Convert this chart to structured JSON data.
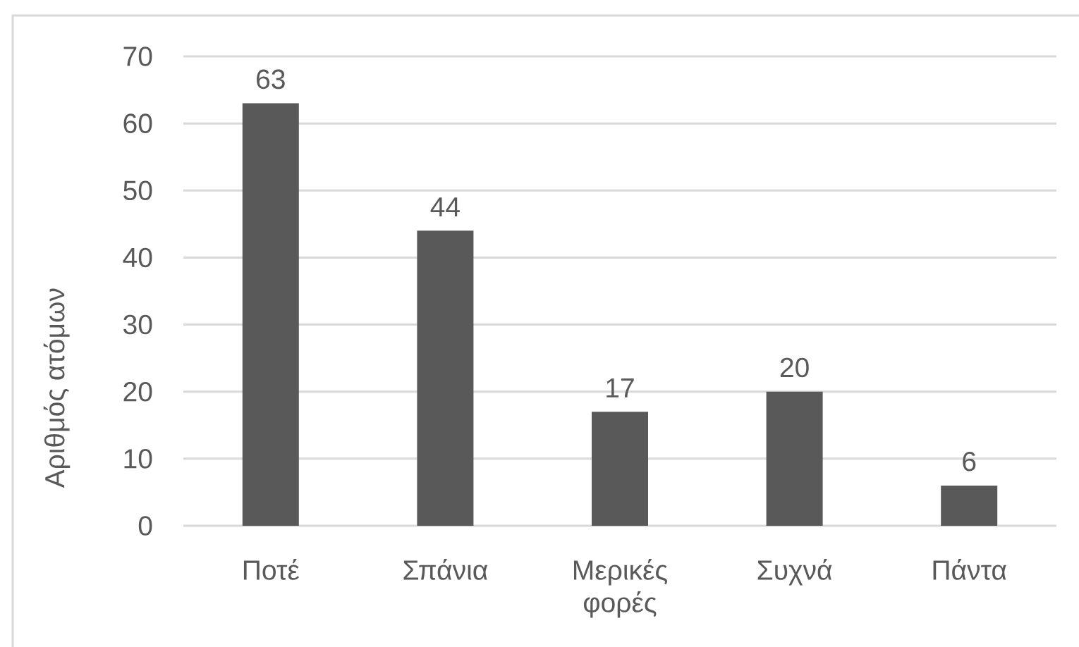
{
  "chart_data": {
    "type": "bar",
    "ylabel": "Αριθμός ατόμων",
    "categories": [
      "Ποτέ",
      "Σπάνια",
      "Μερικές φορές",
      "Συχνά",
      "Πάντα"
    ],
    "values": [
      63,
      44,
      17,
      20,
      6
    ],
    "color": "#595959",
    "ylim": [
      0,
      70
    ],
    "yticks": [
      0,
      10,
      20,
      30,
      40,
      50,
      60,
      70
    ],
    "grid": "y",
    "data_labels": true
  }
}
